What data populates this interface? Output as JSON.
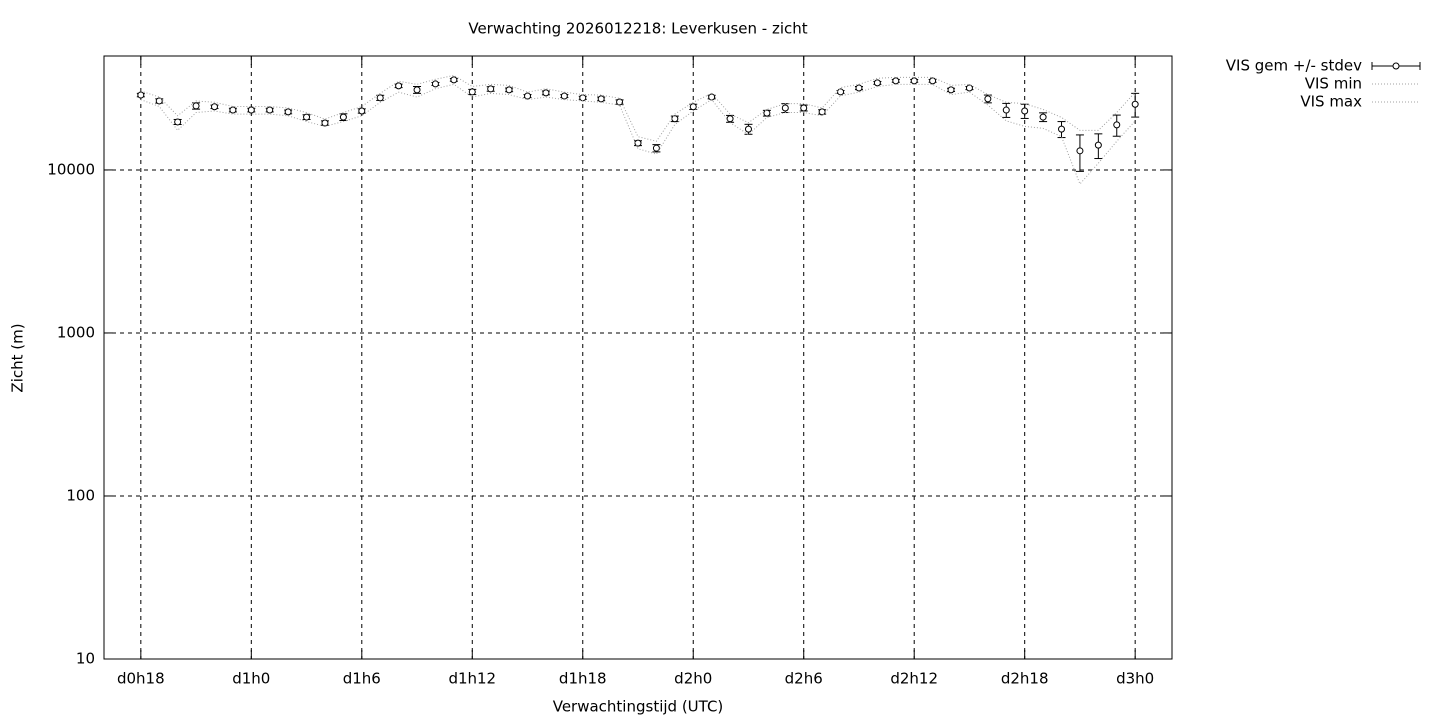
{
  "chart_data": {
    "type": "errorbar",
    "title": "Verwachting 2026012218: Leverkusen - zicht",
    "x_label": "Verwachtingstijd (UTC)",
    "y_label": "Zicht (m)",
    "ylog": true,
    "grid": true,
    "legend_position": "outside right",
    "xlim": [
      16,
      74
    ],
    "ylim": [
      10,
      50000
    ],
    "xticks": [
      {
        "value": 18,
        "label": "d0h18"
      },
      {
        "value": 24,
        "label": "d1h0"
      },
      {
        "value": 30,
        "label": "d1h6"
      },
      {
        "value": 36,
        "label": "d1h12"
      },
      {
        "value": 42,
        "label": "d1h18"
      },
      {
        "value": 48,
        "label": "d2h0"
      },
      {
        "value": 54,
        "label": "d2h6"
      },
      {
        "value": 60,
        "label": "d2h12"
      },
      {
        "value": 66,
        "label": "d2h18"
      },
      {
        "value": 72,
        "label": "d3h0"
      }
    ],
    "yticks": [
      10,
      100,
      1000,
      10000
    ],
    "x": [
      18,
      19,
      20,
      21,
      22,
      23,
      24,
      25,
      26,
      27,
      28,
      29,
      30,
      31,
      32,
      33,
      34,
      35,
      36,
      37,
      38,
      39,
      40,
      41,
      42,
      43,
      44,
      45,
      46,
      47,
      48,
      49,
      50,
      51,
      52,
      53,
      54,
      55,
      56,
      57,
      58,
      59,
      60,
      61,
      62,
      63,
      64,
      65,
      66,
      67,
      68,
      69,
      70,
      71,
      72
    ],
    "series": [
      {
        "name": "VIS gem +/- stdev",
        "color": "#000000",
        "style": "errorbar",
        "values": [
          28800,
          26500,
          19700,
          24700,
          24400,
          23300,
          23300,
          23300,
          22700,
          21100,
          19400,
          21100,
          23000,
          27700,
          32800,
          31000,
          33700,
          35700,
          30100,
          31400,
          31000,
          28400,
          29700,
          28400,
          27700,
          27300,
          26100,
          14600,
          13600,
          20600,
          24400,
          28000,
          20600,
          17800,
          22300,
          24000,
          24000,
          22700,
          30100,
          31800,
          34200,
          35200,
          35200,
          35200,
          31000,
          31800,
          27300,
          23300,
          23000,
          21100,
          17800,
          13100,
          14200,
          18900,
          25300
        ],
        "errors": [
          700,
          800,
          700,
          1100,
          600,
          600,
          600,
          600,
          600,
          700,
          600,
          1000,
          700,
          1000,
          800,
          1500,
          700,
          700,
          1100,
          1000,
          800,
          600,
          800,
          600,
          600,
          700,
          800,
          500,
          700,
          800,
          900,
          700,
          1000,
          1250,
          900,
          1500,
          1000,
          700,
          600,
          700,
          700,
          700,
          700,
          700,
          700,
          700,
          1500,
          2300,
          2300,
          1300,
          2000,
          3300,
          2450,
          2800,
          4200
        ]
      },
      {
        "name": "VIS min",
        "color": "#a0a0a0",
        "style": "dotted",
        "values": [
          27000,
          24500,
          17500,
          22500,
          23000,
          22000,
          22000,
          22000,
          21500,
          19800,
          18500,
          19800,
          21500,
          26000,
          30000,
          28000,
          31500,
          33500,
          28000,
          29500,
          29000,
          27000,
          28000,
          27000,
          26500,
          26000,
          25000,
          13500,
          12500,
          19000,
          23000,
          27000,
          19500,
          16500,
          21000,
          22500,
          22500,
          21500,
          28500,
          30000,
          32500,
          33500,
          33500,
          33500,
          29000,
          30000,
          25000,
          20000,
          18500,
          18000,
          16000,
          8200,
          11000,
          15000,
          20000
        ]
      },
      {
        "name": "VIS max",
        "color": "#a0a0a0",
        "style": "dotted",
        "values": [
          30500,
          28000,
          21500,
          26500,
          26000,
          24500,
          24500,
          24500,
          24000,
          22500,
          20500,
          22500,
          24500,
          29500,
          35000,
          33500,
          36000,
          38000,
          32500,
          33500,
          33000,
          30000,
          31500,
          30000,
          29000,
          28800,
          27500,
          16000,
          15000,
          22000,
          26000,
          29500,
          22000,
          19500,
          23500,
          25500,
          25500,
          24000,
          32000,
          33500,
          36500,
          37000,
          37000,
          37000,
          33000,
          33500,
          29000,
          26000,
          25500,
          23500,
          21000,
          17500,
          17500,
          22500,
          30000
        ]
      }
    ]
  }
}
